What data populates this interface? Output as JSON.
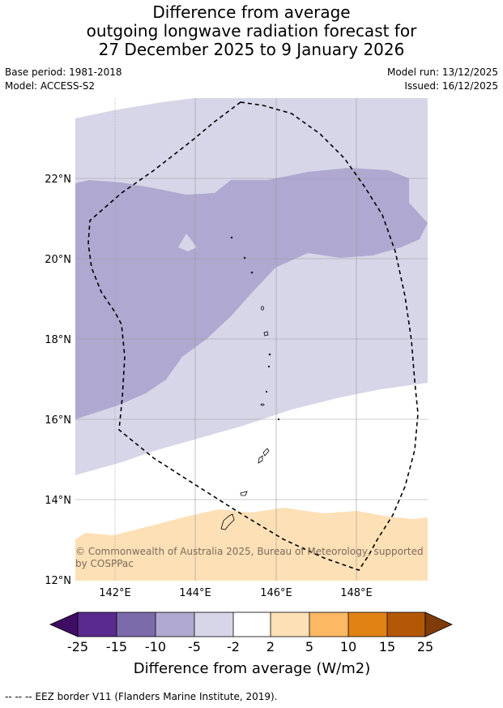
{
  "title": {
    "line1": "Difference from average",
    "line2": "outgoing longwave radiation forecast for",
    "line3": "27 December 2025 to 9 January 2026"
  },
  "meta": {
    "base_period": "Base period: 1981-2018",
    "model": "Model: ACCESS-S2",
    "model_run": "Model run: 13/12/2025",
    "issued": "Issued: 16/12/2025"
  },
  "map": {
    "lat_labels": [
      "22°N",
      "20°N",
      "18°N",
      "16°N",
      "14°N",
      "12°N"
    ],
    "lon_labels": [
      "142°E",
      "144°E",
      "146°E",
      "148°E"
    ],
    "copyright": {
      "line1": "© Commonwealth of Australia 2025, Bureau of Meteorology, supported",
      "line2": "by COSPPac"
    }
  },
  "colorbar": {
    "ticks": [
      "-25",
      "-15",
      "-10",
      "-5",
      "-2",
      "2",
      "5",
      "10",
      "15",
      "25"
    ],
    "colors": [
      "#3f0d63",
      "#5a2a8e",
      "#7b6bab",
      "#afa8d0",
      "#d6d6e8",
      "#ffffff",
      "#fde0b6",
      "#fdb863",
      "#e08214",
      "#b35806",
      "#7f3b08"
    ],
    "label": "Difference from average (W/m2)"
  },
  "footer": "--  --  -- EEZ border V11 (Flanders Marine Institute, 2019)."
}
